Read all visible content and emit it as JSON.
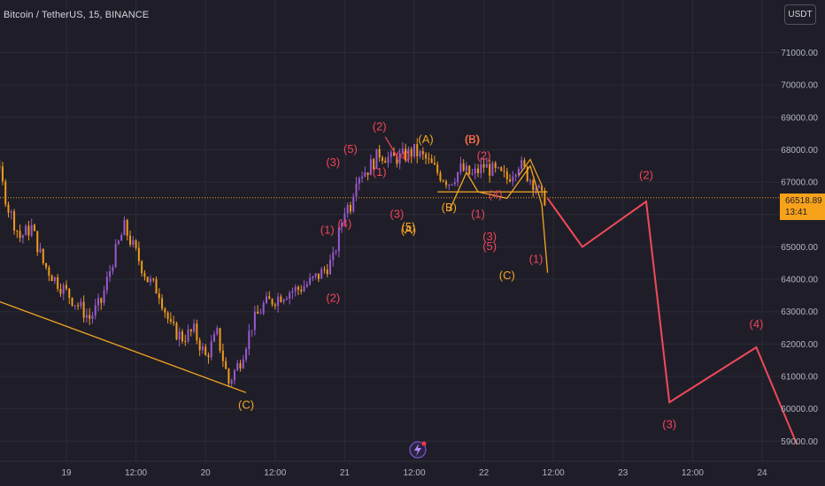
{
  "header": {
    "symbol_title": "Bitcoin / TetherUS, 15, BINANCE",
    "currency_label": "USDT"
  },
  "price_tag": {
    "price": "66518.89",
    "countdown": "13:41"
  },
  "colors": {
    "background": "#1f1e28",
    "grid": "#2a2b36",
    "candle_up": "#9b59d0",
    "candle_down": "#f09a1c",
    "projection": "#f04a5a",
    "wave_orange": "#f5a623",
    "wave_red": "#f0445a",
    "current_price": "#f7a21b"
  },
  "icons": {
    "alert": "lightning-icon"
  },
  "chart_data": {
    "type": "candlestick",
    "title": "Bitcoin / TetherUS, 15, BINANCE",
    "ylim": [
      58500,
      72000
    ],
    "y_ticks": [
      "59000.00",
      "60000.00",
      "61000.00",
      "62000.00",
      "63000.00",
      "64000.00",
      "65000.00",
      "66000.00",
      "67000.00",
      "68000.00",
      "69000.00",
      "70000.00",
      "71000.00"
    ],
    "x_ticks": [
      "19",
      "12:00",
      "20",
      "12:00",
      "21",
      "12:00",
      "22",
      "12:00",
      "23",
      "12:00",
      "24"
    ],
    "x_range_hours": [
      0,
      136
    ],
    "x_start": "18 00:00",
    "current_price": 66518.89,
    "price_path": [
      [
        0,
        67900
      ],
      [
        2,
        67600
      ],
      [
        4,
        67300
      ],
      [
        5,
        67800
      ],
      [
        7,
        67500
      ],
      [
        9,
        67900
      ],
      [
        11,
        68050
      ],
      [
        12,
        67600
      ],
      [
        14,
        66200
      ],
      [
        16,
        65300
      ],
      [
        18,
        65600
      ],
      [
        20,
        64500
      ],
      [
        22,
        64000
      ],
      [
        24,
        63600
      ],
      [
        26,
        63200
      ],
      [
        28,
        62800
      ],
      [
        30,
        63300
      ],
      [
        32,
        64600
      ],
      [
        34,
        65600
      ],
      [
        36,
        64800
      ],
      [
        38,
        64000
      ],
      [
        40,
        63600
      ],
      [
        42,
        62500
      ],
      [
        44,
        62200
      ],
      [
        46,
        62400
      ],
      [
        48,
        61600
      ],
      [
        50,
        62300
      ],
      [
        52,
        60800
      ],
      [
        54,
        61500
      ],
      [
        56,
        62600
      ],
      [
        58,
        63200
      ],
      [
        60,
        63400
      ],
      [
        62,
        63600
      ],
      [
        64,
        63700
      ],
      [
        66,
        63900
      ],
      [
        68,
        64200
      ],
      [
        70,
        64600
      ],
      [
        72,
        66200
      ],
      [
        73,
        66300
      ],
      [
        74,
        67200
      ],
      [
        76,
        67400
      ],
      [
        78,
        67900
      ],
      [
        80,
        67700
      ],
      [
        82,
        67800
      ],
      [
        84,
        67950
      ],
      [
        86,
        67700
      ],
      [
        88,
        67300
      ],
      [
        90,
        67000
      ],
      [
        92,
        67400
      ],
      [
        94,
        67200
      ],
      [
        96,
        67500
      ],
      [
        98,
        67300
      ],
      [
        100,
        67100
      ],
      [
        102,
        67600
      ],
      [
        104,
        67100
      ],
      [
        105,
        66900
      ],
      [
        106,
        66500
      ],
      [
        107,
        66500
      ]
    ],
    "series": [
      {
        "color": "orange",
        "points": [
          [
            -1,
            64200
          ],
          [
            55,
            60500
          ]
        ]
      },
      {
        "color": "red",
        "points": [
          [
            107,
            66500
          ],
          [
            113,
            65000
          ],
          [
            124,
            66400
          ],
          [
            128,
            60200
          ],
          [
            143,
            61900
          ],
          [
            150,
            58900
          ]
        ]
      },
      {
        "color": "orange",
        "points": [
          [
            90,
            66100
          ],
          [
            93,
            67300
          ],
          [
            95,
            66700
          ],
          [
            100,
            66500
          ],
          [
            104,
            67500
          ],
          [
            106,
            66300
          ],
          [
            107,
            64200
          ]
        ]
      }
    ],
    "annotations": [
      {
        "text": "(C)",
        "color": "orange",
        "x": 55,
        "y": 60000
      },
      {
        "text": "(2)",
        "color": "red",
        "x": 78,
        "y": 68600
      },
      {
        "text": "(5)",
        "color": "red",
        "x": 73,
        "y": 67900
      },
      {
        "text": "(3)",
        "color": "red",
        "x": 70,
        "y": 67500
      },
      {
        "text": "(1)",
        "color": "red",
        "x": 69,
        "y": 65400
      },
      {
        "text": "(4)",
        "color": "red",
        "x": 72,
        "y": 65600
      },
      {
        "text": "(2)",
        "color": "red",
        "x": 70,
        "y": 63300
      },
      {
        "text": "(1)",
        "color": "red",
        "x": 78,
        "y": 67200
      },
      {
        "text": "(4)",
        "color": "red",
        "x": 82,
        "y": 67700
      },
      {
        "text": "(3)",
        "color": "red",
        "x": 81,
        "y": 65900
      },
      {
        "text": "(A)",
        "color": "orange",
        "x": 86,
        "y": 68200
      },
      {
        "text": "(5)",
        "color": "orange",
        "x": 83,
        "y": 65500
      },
      {
        "text": "(A)",
        "color": "orange",
        "x": 83,
        "y": 65400
      },
      {
        "text": "(B)",
        "color": "orange",
        "x": 90,
        "y": 66100
      },
      {
        "text": "(B)",
        "color": "orange",
        "x": 94,
        "y": 68200
      },
      {
        "text": "(5)",
        "color": "red",
        "x": 94,
        "y": 68200
      },
      {
        "text": "(2)",
        "color": "red",
        "x": 96,
        "y": 67700
      },
      {
        "text": "(4)",
        "color": "red",
        "x": 98,
        "y": 66500
      },
      {
        "text": "(1)",
        "color": "red",
        "x": 95,
        "y": 65900
      },
      {
        "text": "(3)",
        "color": "red",
        "x": 97,
        "y": 65200
      },
      {
        "text": "(5)",
        "color": "red",
        "x": 97,
        "y": 64900
      },
      {
        "text": "(C)",
        "color": "orange",
        "x": 100,
        "y": 64000
      },
      {
        "text": "(1)",
        "color": "red",
        "x": 105,
        "y": 64500
      },
      {
        "text": "(2)",
        "color": "red",
        "x": 124,
        "y": 67100
      },
      {
        "text": "(3)",
        "color": "red",
        "x": 128,
        "y": 59400
      },
      {
        "text": "(4)",
        "color": "red",
        "x": 143,
        "y": 62500
      }
    ]
  }
}
